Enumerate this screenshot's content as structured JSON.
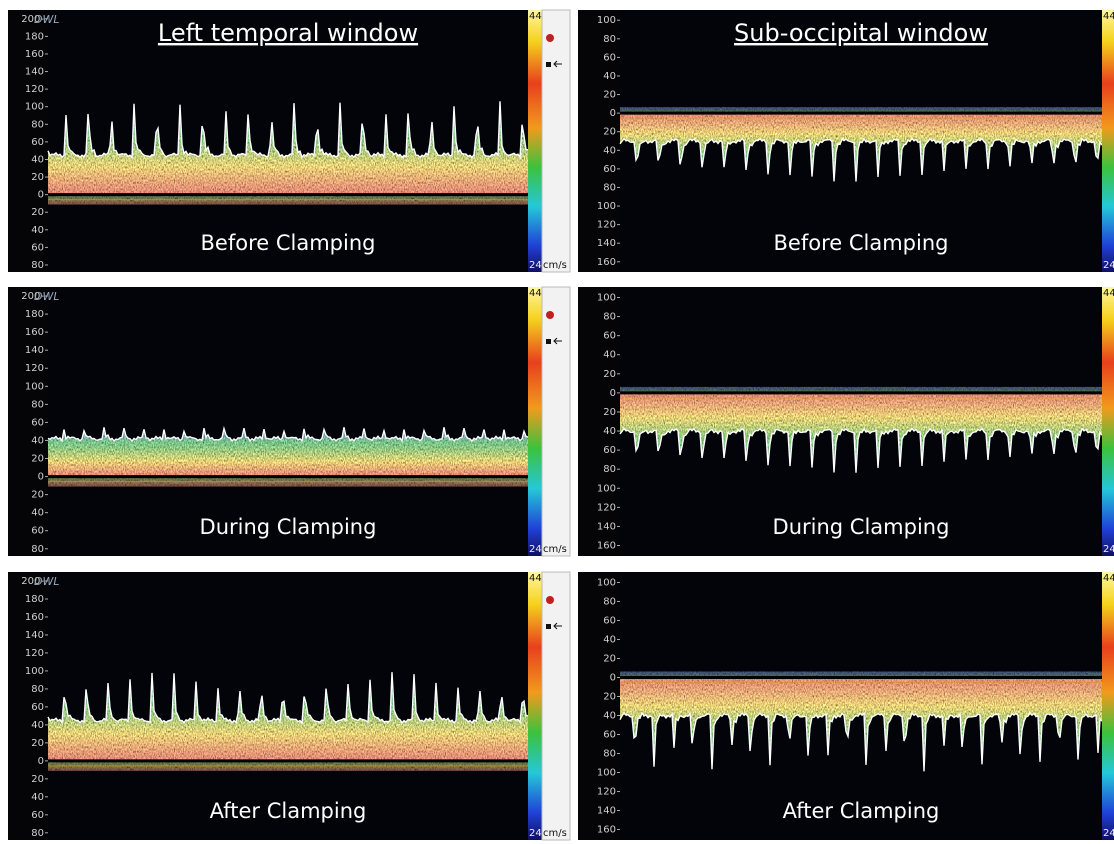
{
  "titles": {
    "left": "Left temporal window",
    "right": "Sub-occipital window"
  },
  "logo": "DWL",
  "colorbar": {
    "max": "44",
    "min": "24",
    "unit": "cm/s"
  },
  "axes": {
    "left": {
      "ylim": [
        210,
        -88
      ],
      "yticks": [
        {
          "value": 200,
          "label": "200-"
        },
        180,
        160,
        140,
        120,
        100,
        80,
        60,
        40,
        20,
        0,
        {
          "value": -20,
          "label": "20"
        },
        {
          "value": -40,
          "label": "40"
        },
        {
          "value": -60,
          "label": "60"
        },
        {
          "value": -80,
          "label": "80"
        }
      ]
    },
    "right": {
      "ylim": [
        111,
        -171
      ],
      "yticks": [
        100,
        80,
        60,
        40,
        20,
        0,
        {
          "value": -20,
          "label": "20"
        },
        {
          "value": -40,
          "label": "40"
        },
        {
          "value": -60,
          "label": "60"
        },
        {
          "value": -80,
          "label": "80"
        },
        {
          "value": -100,
          "label": "100"
        },
        {
          "value": -120,
          "label": "120"
        },
        {
          "value": -140,
          "label": "140"
        },
        {
          "value": -160,
          "label": "160"
        }
      ]
    }
  },
  "rows": [
    {
      "label": "Before Clamping",
      "left": {
        "peak": 110,
        "trough": 45,
        "beats": 21
      },
      "right": {
        "peak": -75,
        "trough": -30,
        "beats": 22
      }
    },
    {
      "label": "During Clamping",
      "left": {
        "peak": 60,
        "trough": 42,
        "beats": 24
      },
      "right": {
        "peak": -85,
        "trough": -40,
        "beats": 22
      }
    },
    {
      "label": "After Clamping",
      "left": {
        "peak": 100,
        "trough": 45,
        "beats": 22
      },
      "right": {
        "peak": -100,
        "trough": -40,
        "beats": 25
      }
    }
  ]
}
